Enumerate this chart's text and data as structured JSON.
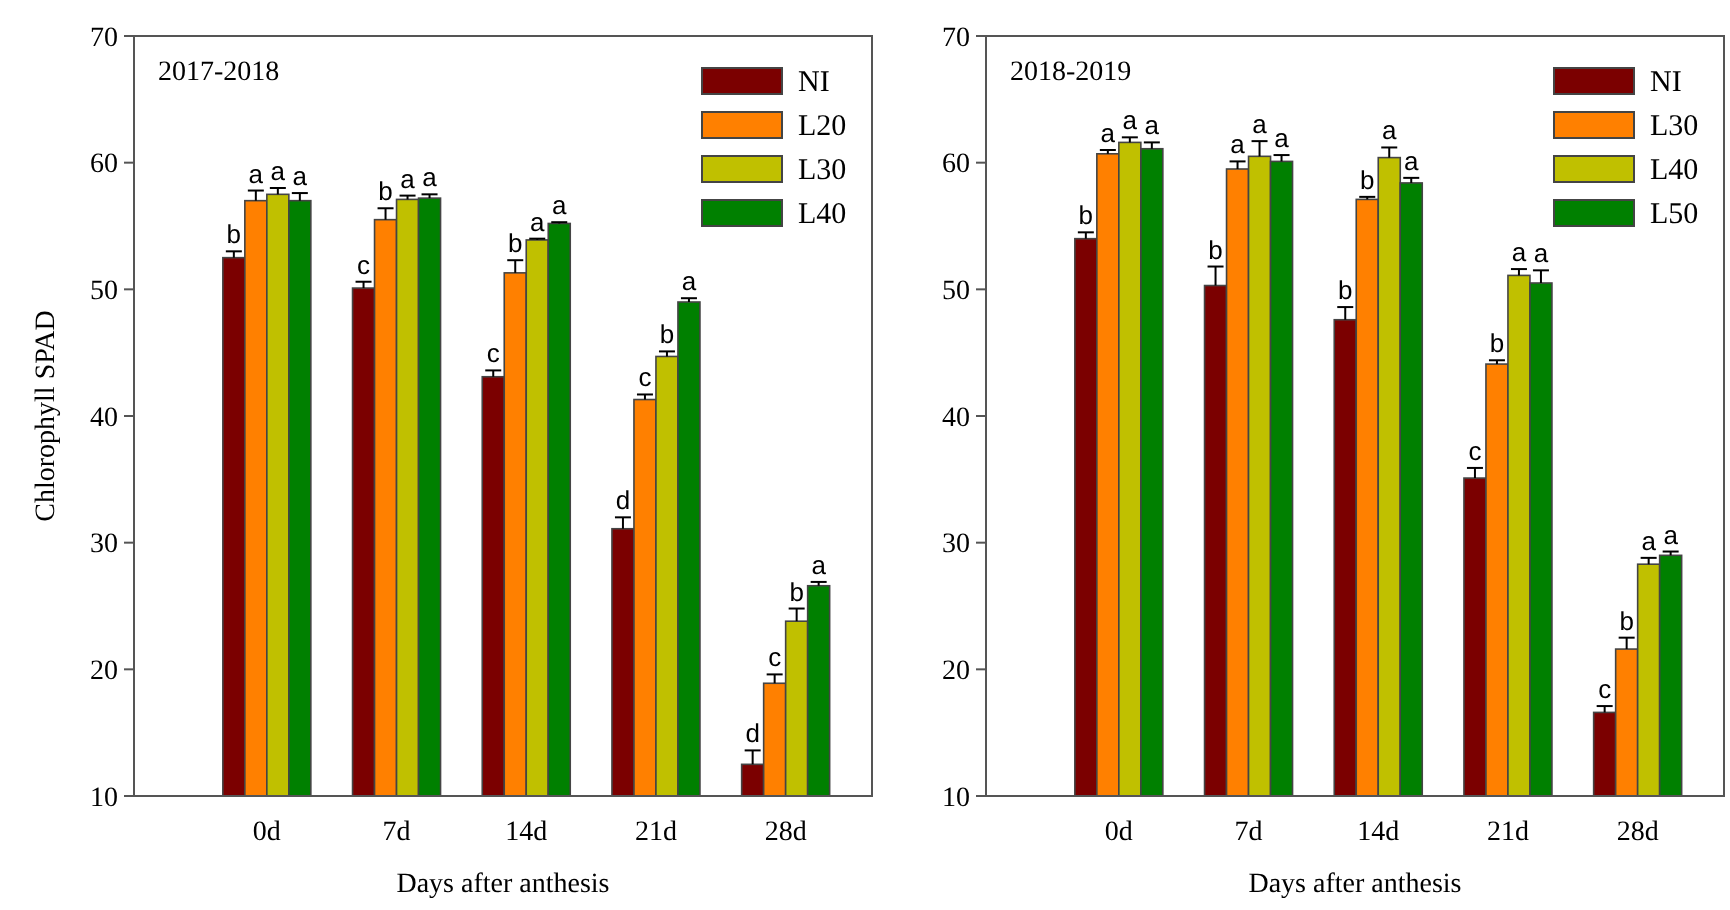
{
  "chart_data": [
    {
      "type": "bar",
      "ylabel": "Chlorophyll SPAD",
      "xlabel": "Days after anthesis",
      "categories": [
        "0d",
        "7d",
        "14d",
        "21d",
        "28d"
      ],
      "ylim": [
        10,
        70
      ],
      "yticks": [
        10,
        20,
        30,
        40,
        50,
        60,
        70
      ],
      "legend": "top right",
      "grid": false,
      "series": [
        {
          "name": "NI",
          "color": "#7b0000",
          "values": [
            52.5,
            50.1,
            43.1,
            31.1,
            12.5
          ],
          "errors": [
            0.5,
            0.5,
            0.5,
            0.9,
            1.1
          ]
        },
        {
          "name": "L20",
          "color": "#ff8000",
          "values": [
            57,
            55.5,
            51.3,
            41.3,
            18.9
          ],
          "errors": [
            0.8,
            0.9,
            1.0,
            0.4,
            0.7
          ]
        },
        {
          "name": "L30",
          "color": "#c0c000",
          "values": [
            57.5,
            57.1,
            53.9,
            44.7,
            23.8
          ],
          "errors": [
            0.5,
            0.3,
            0.1,
            0.4,
            1.0
          ]
        },
        {
          "name": "L40",
          "color": "#008000",
          "values": [
            57,
            57.2,
            55.2,
            49,
            26.6
          ],
          "errors": [
            0.6,
            0.3,
            0.1,
            0.3,
            0.3
          ]
        }
      ],
      "annotations": [
        "2017-2018",
        "b",
        "a",
        "a",
        "a",
        "c",
        "b",
        "a",
        "a",
        "c",
        "b",
        "a",
        "a",
        "d",
        "c",
        "b",
        "a",
        "d",
        "c",
        "b",
        "a"
      ]
    },
    {
      "type": "bar",
      "xlabel": "Days after anthesis",
      "categories": [
        "0d",
        "7d",
        "14d",
        "21d",
        "28d"
      ],
      "ylim": [
        10,
        70
      ],
      "yticks": [
        10,
        20,
        30,
        40,
        50,
        60,
        70
      ],
      "legend": "top right",
      "grid": false,
      "series": [
        {
          "name": "NI",
          "color": "#7b0000",
          "values": [
            54,
            50.3,
            47.6,
            35.1,
            16.6
          ],
          "errors": [
            0.5,
            1.5,
            1.0,
            0.8,
            0.5
          ]
        },
        {
          "name": "L30",
          "color": "#ff8000",
          "values": [
            60.7,
            59.5,
            57.1,
            44.1,
            21.6
          ],
          "errors": [
            0.3,
            0.6,
            0.2,
            0.3,
            0.9
          ]
        },
        {
          "name": "L40",
          "color": "#c0c000",
          "values": [
            61.6,
            60.5,
            60.4,
            51.1,
            28.3
          ],
          "errors": [
            0.4,
            1.2,
            0.8,
            0.5,
            0.5
          ]
        },
        {
          "name": "L50",
          "color": "#008000",
          "values": [
            61.1,
            60.1,
            58.4,
            50.5,
            29
          ],
          "errors": [
            0.5,
            0.5,
            0.4,
            1.0,
            0.3
          ]
        }
      ],
      "annotations": [
        "2018-2019",
        "b",
        "a",
        "a",
        "a",
        "b",
        "a",
        "a",
        "a",
        "b",
        "b",
        "a",
        "a",
        "c",
        "b",
        "a",
        "a",
        "c",
        "b",
        "a",
        "a"
      ]
    }
  ]
}
